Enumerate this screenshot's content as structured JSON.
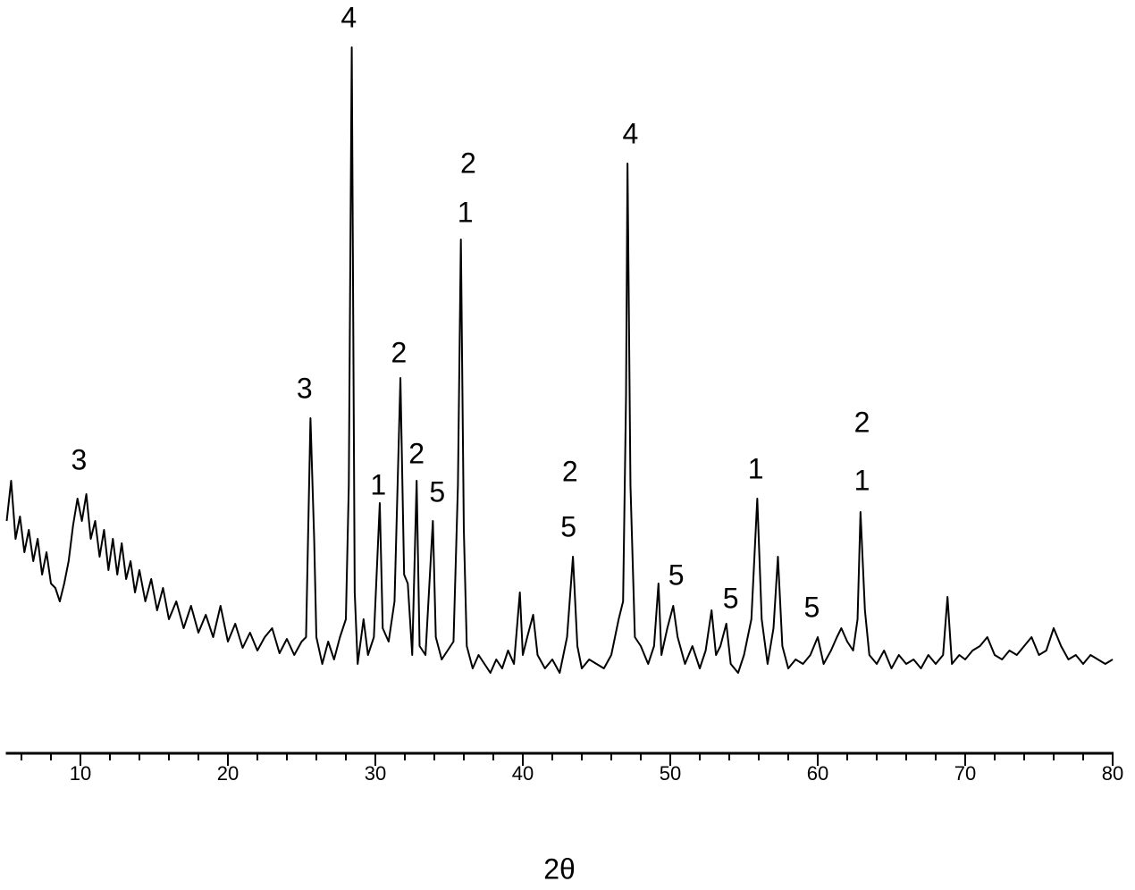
{
  "chart_data": {
    "type": "line",
    "x_label": "2θ",
    "color": "#000000",
    "xlim": [
      5,
      80
    ],
    "ylim": [
      0,
      840
    ],
    "xticks": [
      10,
      20,
      30,
      40,
      50,
      60,
      70,
      80
    ],
    "xminorticks": [
      6,
      8,
      12,
      14,
      16,
      18,
      22,
      24,
      26,
      28,
      32,
      34,
      36,
      38,
      42,
      44,
      46,
      48,
      52,
      54,
      56,
      58,
      62,
      64,
      66,
      68,
      72,
      74,
      76,
      78
    ],
    "x": [
      5.0,
      5.3,
      5.6,
      5.9,
      6.2,
      6.5,
      6.8,
      7.1,
      7.4,
      7.7,
      8.0,
      8.3,
      8.6,
      8.9,
      9.2,
      9.5,
      9.8,
      10.1,
      10.4,
      10.7,
      11.0,
      11.3,
      11.6,
      11.9,
      12.2,
      12.5,
      12.8,
      13.1,
      13.4,
      13.7,
      14.0,
      14.4,
      14.8,
      15.2,
      15.6,
      16.0,
      16.5,
      17.0,
      17.5,
      18.0,
      18.5,
      19.0,
      19.5,
      20.0,
      20.5,
      21.0,
      21.5,
      22.0,
      22.5,
      23.0,
      23.5,
      24.0,
      24.5,
      25.0,
      25.3,
      25.6,
      25.85,
      26.0,
      26.4,
      26.8,
      27.2,
      27.6,
      28.0,
      28.2,
      28.4,
      28.6,
      28.8,
      29.2,
      29.5,
      29.9,
      30.3,
      30.5,
      30.9,
      31.3,
      31.7,
      31.95,
      32.2,
      32.5,
      32.8,
      33.0,
      33.4,
      33.9,
      34.1,
      34.5,
      34.9,
      35.3,
      35.6,
      35.8,
      36.0,
      36.2,
      36.6,
      37.0,
      37.4,
      37.8,
      38.2,
      38.6,
      39.0,
      39.4,
      39.8,
      40.0,
      40.3,
      40.7,
      41.0,
      41.5,
      42.0,
      42.5,
      43.0,
      43.4,
      43.7,
      44.0,
      44.5,
      45.0,
      45.5,
      46.0,
      46.5,
      46.8,
      47.0,
      47.1,
      47.3,
      47.6,
      48.0,
      48.5,
      48.9,
      49.2,
      49.4,
      49.8,
      50.2,
      50.5,
      51.0,
      51.5,
      52.0,
      52.4,
      52.8,
      53.1,
      53.4,
      53.8,
      54.1,
      54.6,
      55.0,
      55.5,
      55.9,
      56.2,
      56.6,
      57.0,
      57.3,
      57.6,
      58.0,
      58.5,
      59.0,
      59.5,
      60.0,
      60.4,
      60.9,
      61.3,
      61.6,
      62.0,
      62.4,
      62.7,
      62.9,
      63.2,
      63.5,
      64.0,
      64.5,
      65.0,
      65.5,
      66.0,
      66.5,
      67.0,
      67.5,
      68.0,
      68.5,
      68.8,
      69.1,
      69.6,
      70.0,
      70.5,
      71.0,
      71.5,
      72.0,
      72.5,
      73.0,
      73.5,
      74.0,
      74.5,
      75.0,
      75.5,
      76.0,
      76.5,
      77.0,
      77.5,
      78.0,
      78.5,
      79.0,
      79.5,
      80.0
    ],
    "values": [
      260,
      305,
      240,
      265,
      225,
      250,
      215,
      240,
      200,
      225,
      190,
      185,
      170,
      190,
      215,
      255,
      285,
      260,
      290,
      240,
      260,
      220,
      250,
      205,
      240,
      200,
      235,
      195,
      215,
      180,
      205,
      170,
      195,
      160,
      185,
      150,
      170,
      140,
      165,
      135,
      155,
      130,
      165,
      125,
      145,
      118,
      135,
      115,
      130,
      140,
      112,
      128,
      110,
      125,
      130,
      375,
      240,
      130,
      100,
      125,
      105,
      130,
      150,
      300,
      790,
      180,
      100,
      150,
      110,
      130,
      280,
      140,
      125,
      170,
      420,
      200,
      190,
      110,
      305,
      120,
      110,
      260,
      130,
      105,
      115,
      125,
      300,
      575,
      250,
      120,
      95,
      110,
      100,
      90,
      105,
      95,
      115,
      100,
      180,
      110,
      130,
      155,
      110,
      95,
      105,
      90,
      130,
      220,
      120,
      95,
      105,
      100,
      95,
      110,
      150,
      170,
      400,
      660,
      300,
      130,
      120,
      100,
      120,
      190,
      110,
      140,
      165,
      130,
      100,
      120,
      95,
      115,
      160,
      110,
      120,
      145,
      100,
      90,
      110,
      150,
      285,
      150,
      100,
      140,
      220,
      120,
      95,
      105,
      100,
      110,
      130,
      100,
      115,
      130,
      140,
      125,
      115,
      150,
      270,
      160,
      110,
      100,
      115,
      95,
      110,
      100,
      105,
      95,
      110,
      100,
      110,
      175,
      100,
      110,
      105,
      115,
      120,
      130,
      110,
      105,
      115,
      110,
      120,
      130,
      110,
      115,
      140,
      120,
      105,
      110,
      100,
      110,
      105,
      100,
      105
    ],
    "annotations": [
      {
        "text": "3",
        "x": 9.9,
        "y": 326
      },
      {
        "text": "3",
        "x": 25.2,
        "y": 406
      },
      {
        "text": "4",
        "x": 28.2,
        "y": 821
      },
      {
        "text": "1",
        "x": 30.2,
        "y": 298
      },
      {
        "text": "2",
        "x": 31.6,
        "y": 446
      },
      {
        "text": "2",
        "x": 32.8,
        "y": 333
      },
      {
        "text": "5",
        "x": 34.2,
        "y": 290
      },
      {
        "text": "2",
        "x": 36.3,
        "y": 658
      },
      {
        "text": "1",
        "x": 36.1,
        "y": 603
      },
      {
        "text": "2",
        "x": 43.2,
        "y": 313
      },
      {
        "text": "5",
        "x": 43.1,
        "y": 251
      },
      {
        "text": "4",
        "x": 47.3,
        "y": 691
      },
      {
        "text": "5",
        "x": 50.4,
        "y": 197
      },
      {
        "text": "5",
        "x": 54.1,
        "y": 171
      },
      {
        "text": "1",
        "x": 55.8,
        "y": 316
      },
      {
        "text": "5",
        "x": 59.6,
        "y": 161
      },
      {
        "text": "2",
        "x": 63.0,
        "y": 368
      },
      {
        "text": "1",
        "x": 63.0,
        "y": 303
      }
    ]
  }
}
